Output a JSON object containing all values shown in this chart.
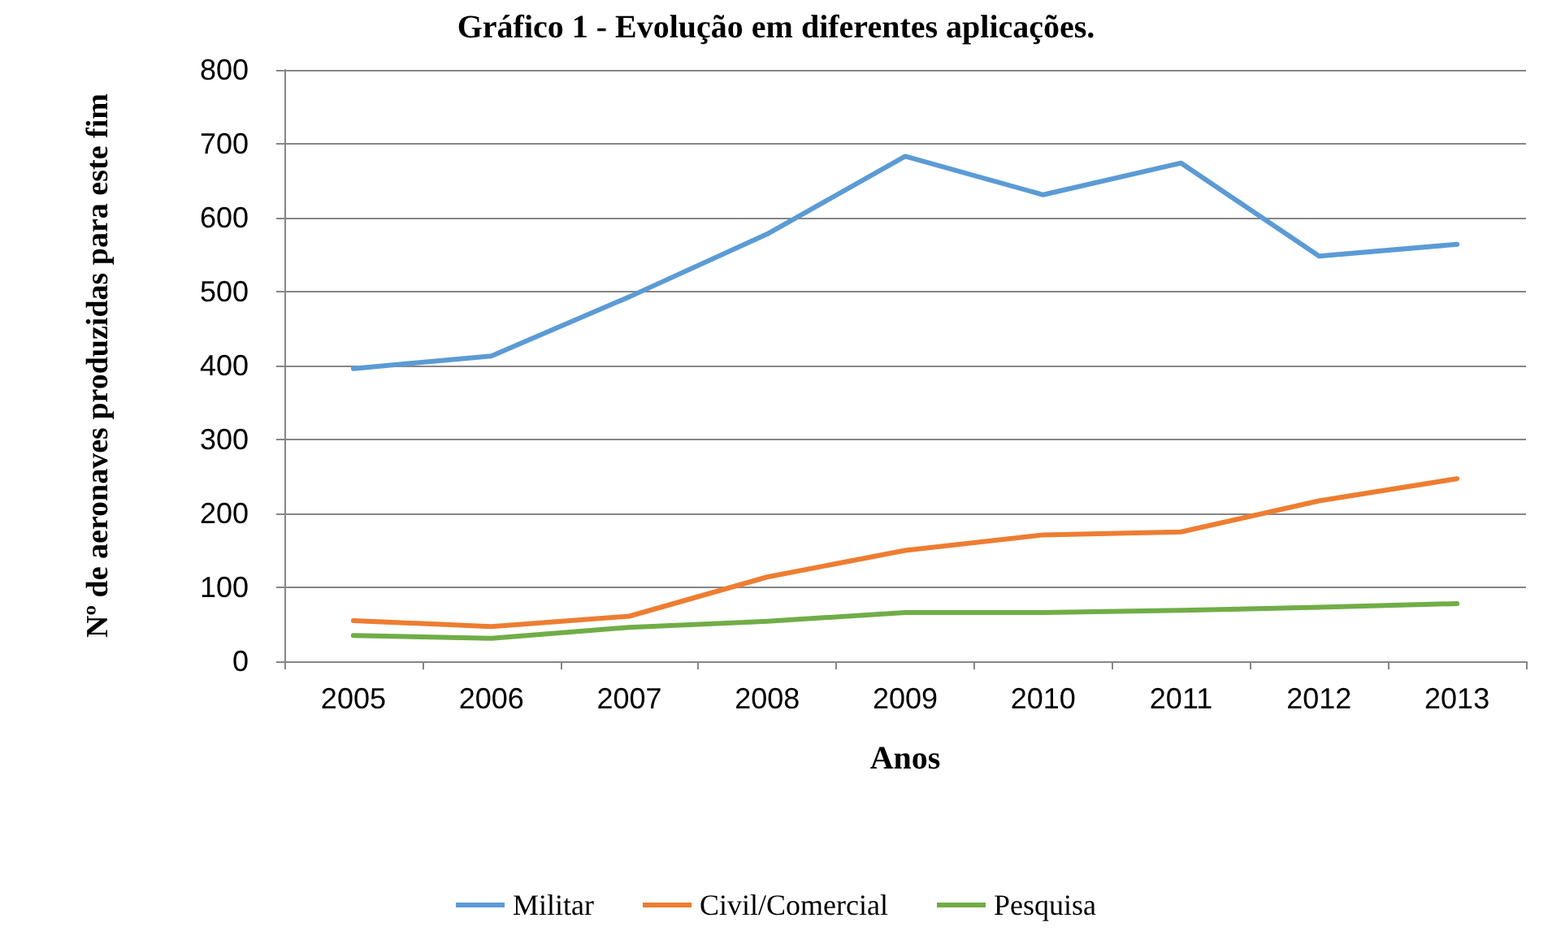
{
  "chart_data": {
    "type": "line",
    "title": "Gráfico 1 - Evolução em diferentes aplicações.",
    "xlabel": "Anos",
    "ylabel": "Nº de aeronaves produzidas para este fim",
    "categories": [
      "2005",
      "2006",
      "2007",
      "2008",
      "2009",
      "2010",
      "2011",
      "2012",
      "2013"
    ],
    "series": [
      {
        "name": "Militar",
        "color": "#5b9bd5",
        "values": [
          396,
          413,
          493,
          578,
          683,
          631,
          674,
          548,
          564
        ]
      },
      {
        "name": "Civil/Comercial",
        "color": "#ed7d31",
        "values": [
          55,
          47,
          61,
          114,
          150,
          171,
          175,
          217,
          247
        ]
      },
      {
        "name": "Pesquisa",
        "color": "#70ad47",
        "values": [
          35,
          31,
          46,
          54,
          66,
          66,
          69,
          73,
          78
        ]
      }
    ],
    "ylim": [
      0,
      800
    ],
    "yticks": [
      0,
      100,
      200,
      300,
      400,
      500,
      600,
      700,
      800
    ],
    "grid": "y",
    "legend": "bottom",
    "marker": "none",
    "line_style": "solid"
  }
}
